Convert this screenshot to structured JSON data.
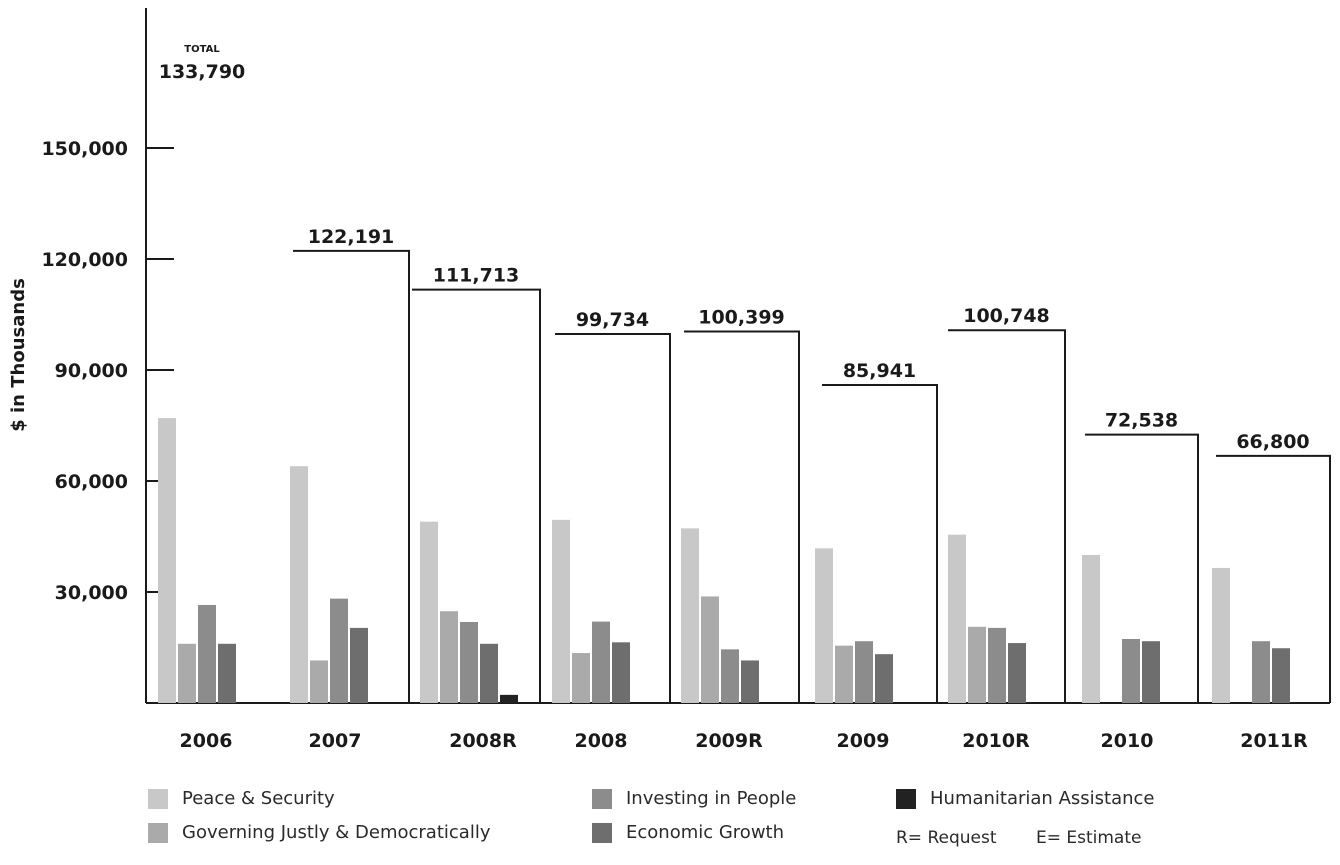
{
  "chart_data": {
    "type": "bar",
    "ylabel": "$ in Thousands",
    "ylim": [
      0,
      150000
    ],
    "yticks": [
      "30,000",
      "60,000",
      "90,000",
      "120,000",
      "150,000"
    ],
    "ytick_values": [
      30000,
      60000,
      90000,
      120000,
      150000
    ],
    "categories": [
      "2006",
      "2007",
      "2008R",
      "2008",
      "2009R",
      "2009",
      "2010R",
      "2010",
      "2011R"
    ],
    "totals": [
      133790,
      122191,
      111713,
      99734,
      100399,
      85941,
      100748,
      72538,
      66800
    ],
    "total_labels": [
      "133,790",
      "122,191",
      "111,713",
      "99,734",
      "100,399",
      "85,941",
      "100,748",
      "72,538",
      "66,800"
    ],
    "total_word": "TOTAL",
    "series": [
      {
        "name": "Peace & Security",
        "color": "#c8c8c8",
        "values": [
          77000,
          64000,
          49000,
          49500,
          47200,
          41800,
          45500,
          40000,
          36500
        ]
      },
      {
        "name": "Governing Justly & Democratically",
        "color": "#aaaaaa",
        "values": [
          16000,
          11500,
          24800,
          13500,
          28800,
          15500,
          20600,
          0,
          0
        ]
      },
      {
        "name": "Investing in People",
        "color": "#8c8c8c",
        "values": [
          26500,
          28200,
          21900,
          22000,
          14500,
          16700,
          20300,
          17300,
          16700
        ]
      },
      {
        "name": "Economic Growth",
        "color": "#6e6e6e",
        "values": [
          16000,
          20300,
          16000,
          16400,
          11500,
          13200,
          16200,
          16700,
          14800
        ]
      },
      {
        "name": "Humanitarian Assistance",
        "color": "#222222",
        "values": [
          0,
          0,
          2200,
          0,
          0,
          0,
          0,
          0,
          0
        ]
      }
    ],
    "grid": false
  },
  "legend": {
    "items": [
      {
        "label": "Peace & Security",
        "color": "#c8c8c8"
      },
      {
        "label": "Governing Justly & Democratically",
        "color": "#aaaaaa"
      },
      {
        "label": "Investing in People",
        "color": "#8c8c8c"
      },
      {
        "label": "Economic Growth",
        "color": "#6e6e6e"
      },
      {
        "label": "Humanitarian Assistance",
        "color": "#222222"
      }
    ],
    "note_request": "R= Request",
    "note_estimate": "E= Estimate"
  }
}
